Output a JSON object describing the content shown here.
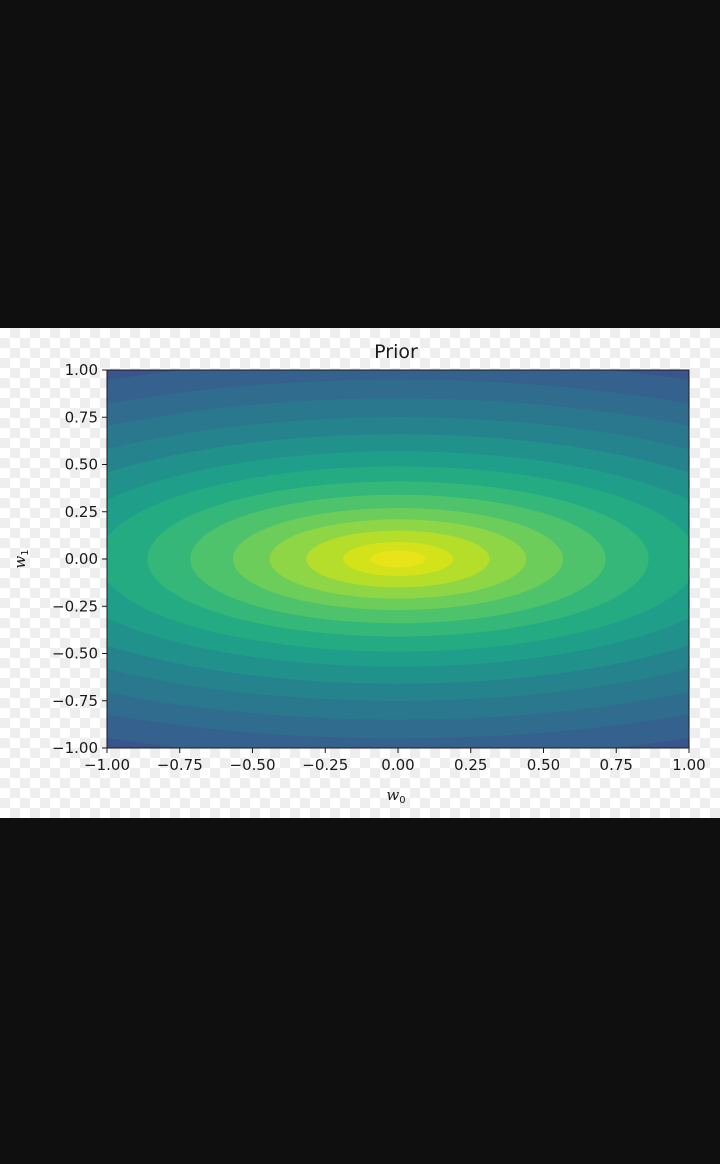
{
  "chart_data": {
    "type": "heatmap",
    "subtype": "filled-contour",
    "title": "Prior",
    "xlabel": {
      "text": "w",
      "subscript": "0"
    },
    "ylabel": {
      "text": "w",
      "subscript": "1"
    },
    "xlim": [
      -1.0,
      1.0
    ],
    "ylim": [
      -1.0,
      1.0
    ],
    "x_ticks": [
      -1.0,
      -0.75,
      -0.5,
      -0.25,
      0.0,
      0.25,
      0.5,
      0.75,
      1.0
    ],
    "x_tick_labels": [
      "−1.00",
      "−0.75",
      "−0.50",
      "−0.25",
      "0.00",
      "0.25",
      "0.50",
      "0.75",
      "1.00"
    ],
    "y_ticks": [
      1.0,
      0.75,
      0.5,
      0.25,
      0.0,
      -0.25,
      -0.5,
      -0.75,
      -1.0
    ],
    "y_tick_labels": [
      "1.00",
      "0.75",
      "0.50",
      "0.25",
      "0.00",
      "−0.25",
      "−0.50",
      "−0.75",
      "−1.00"
    ],
    "grid": false,
    "legend": "none",
    "colormap": "viridis",
    "distribution": {
      "kind": "gaussian",
      "mean": [
        0.0,
        0.0
      ],
      "semi_axis_ratio_x_to_y": 2.1
    },
    "contour_levels": [
      {
        "radius": 1.9,
        "color": "#46085c"
      },
      {
        "radius": 1.78,
        "color": "#471365"
      },
      {
        "radius": 1.66,
        "color": "#481f70"
      },
      {
        "radius": 1.54,
        "color": "#472a7a"
      },
      {
        "radius": 1.42,
        "color": "#443983"
      },
      {
        "radius": 1.3,
        "color": "#3f4889"
      },
      {
        "radius": 1.18,
        "color": "#3a548c"
      },
      {
        "radius": 1.06,
        "color": "#34618d"
      },
      {
        "radius": 0.95,
        "color": "#2f6c8e"
      },
      {
        "radius": 0.85,
        "color": "#2a788e"
      },
      {
        "radius": 0.75,
        "color": "#25838e"
      },
      {
        "radius": 0.66,
        "color": "#21918c"
      },
      {
        "radius": 0.57,
        "color": "#1f9e89"
      },
      {
        "radius": 0.49,
        "color": "#25ab82"
      },
      {
        "radius": 0.41,
        "color": "#35b779"
      },
      {
        "radius": 0.34,
        "color": "#4ec36b"
      },
      {
        "radius": 0.27,
        "color": "#6ccd5a"
      },
      {
        "radius": 0.21,
        "color": "#8ed645"
      },
      {
        "radius": 0.15,
        "color": "#b5de2b"
      },
      {
        "radius": 0.09,
        "color": "#d4e21a"
      },
      {
        "radius": 0.045,
        "color": "#e7e419"
      }
    ]
  }
}
